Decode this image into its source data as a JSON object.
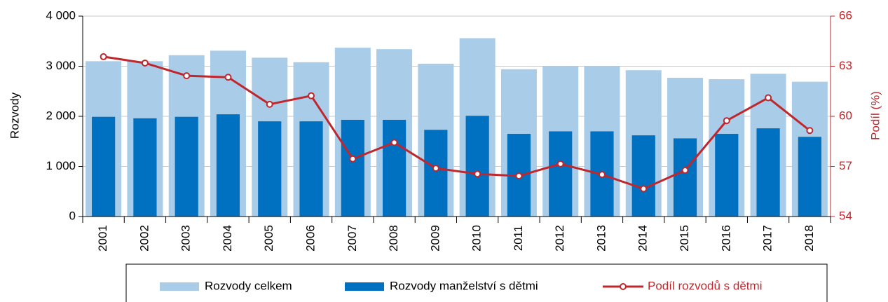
{
  "chart_data": {
    "type": "bar_line",
    "categories": [
      "2001",
      "2002",
      "2003",
      "2004",
      "2005",
      "2006",
      "2007",
      "2008",
      "2009",
      "2010",
      "2011",
      "2012",
      "2013",
      "2014",
      "2015",
      "2016",
      "2017",
      "2018"
    ],
    "series": [
      {
        "name": "Rozvody celkem",
        "color": "#a9cce8",
        "values": [
          3100,
          3100,
          3220,
          3310,
          3170,
          3080,
          3370,
          3340,
          3050,
          3560,
          2940,
          3000,
          3000,
          2920,
          2770,
          2740,
          2850,
          2690
        ]
      },
      {
        "name": "Rozvody manželství s dětmi",
        "color": "#0070c0",
        "values": [
          1990,
          1960,
          1990,
          2040,
          1900,
          1900,
          1930,
          1930,
          1730,
          2010,
          1650,
          1700,
          1700,
          1620,
          1560,
          1650,
          1760,
          1590
        ]
      },
      {
        "name": "Podíl rozvodů s dětmi",
        "color": "#c0272d",
        "axis": "y2",
        "type": "line",
        "values": [
          63.57,
          63.19,
          62.43,
          62.34,
          60.72,
          61.23,
          57.45,
          58.43,
          56.89,
          56.55,
          56.43,
          57.15,
          56.51,
          55.66,
          56.77,
          59.74,
          61.11,
          59.15
        ]
      }
    ],
    "ylabel": "Rozvody",
    "y2label": "Podíl (%)",
    "ylim": [
      0,
      4000
    ],
    "yticks": [
      0,
      {
        "value": 1000,
        "label": "1 000"
      },
      {
        "value": 2000,
        "label": "2 000"
      },
      {
        "value": 3000,
        "label": "3 000"
      },
      {
        "value": 4000,
        "label": "4 000"
      }
    ],
    "y2lim": [
      54,
      66
    ],
    "y2ticks": [
      54,
      57,
      60,
      63,
      66
    ],
    "grid": true,
    "legend": "bottom"
  }
}
